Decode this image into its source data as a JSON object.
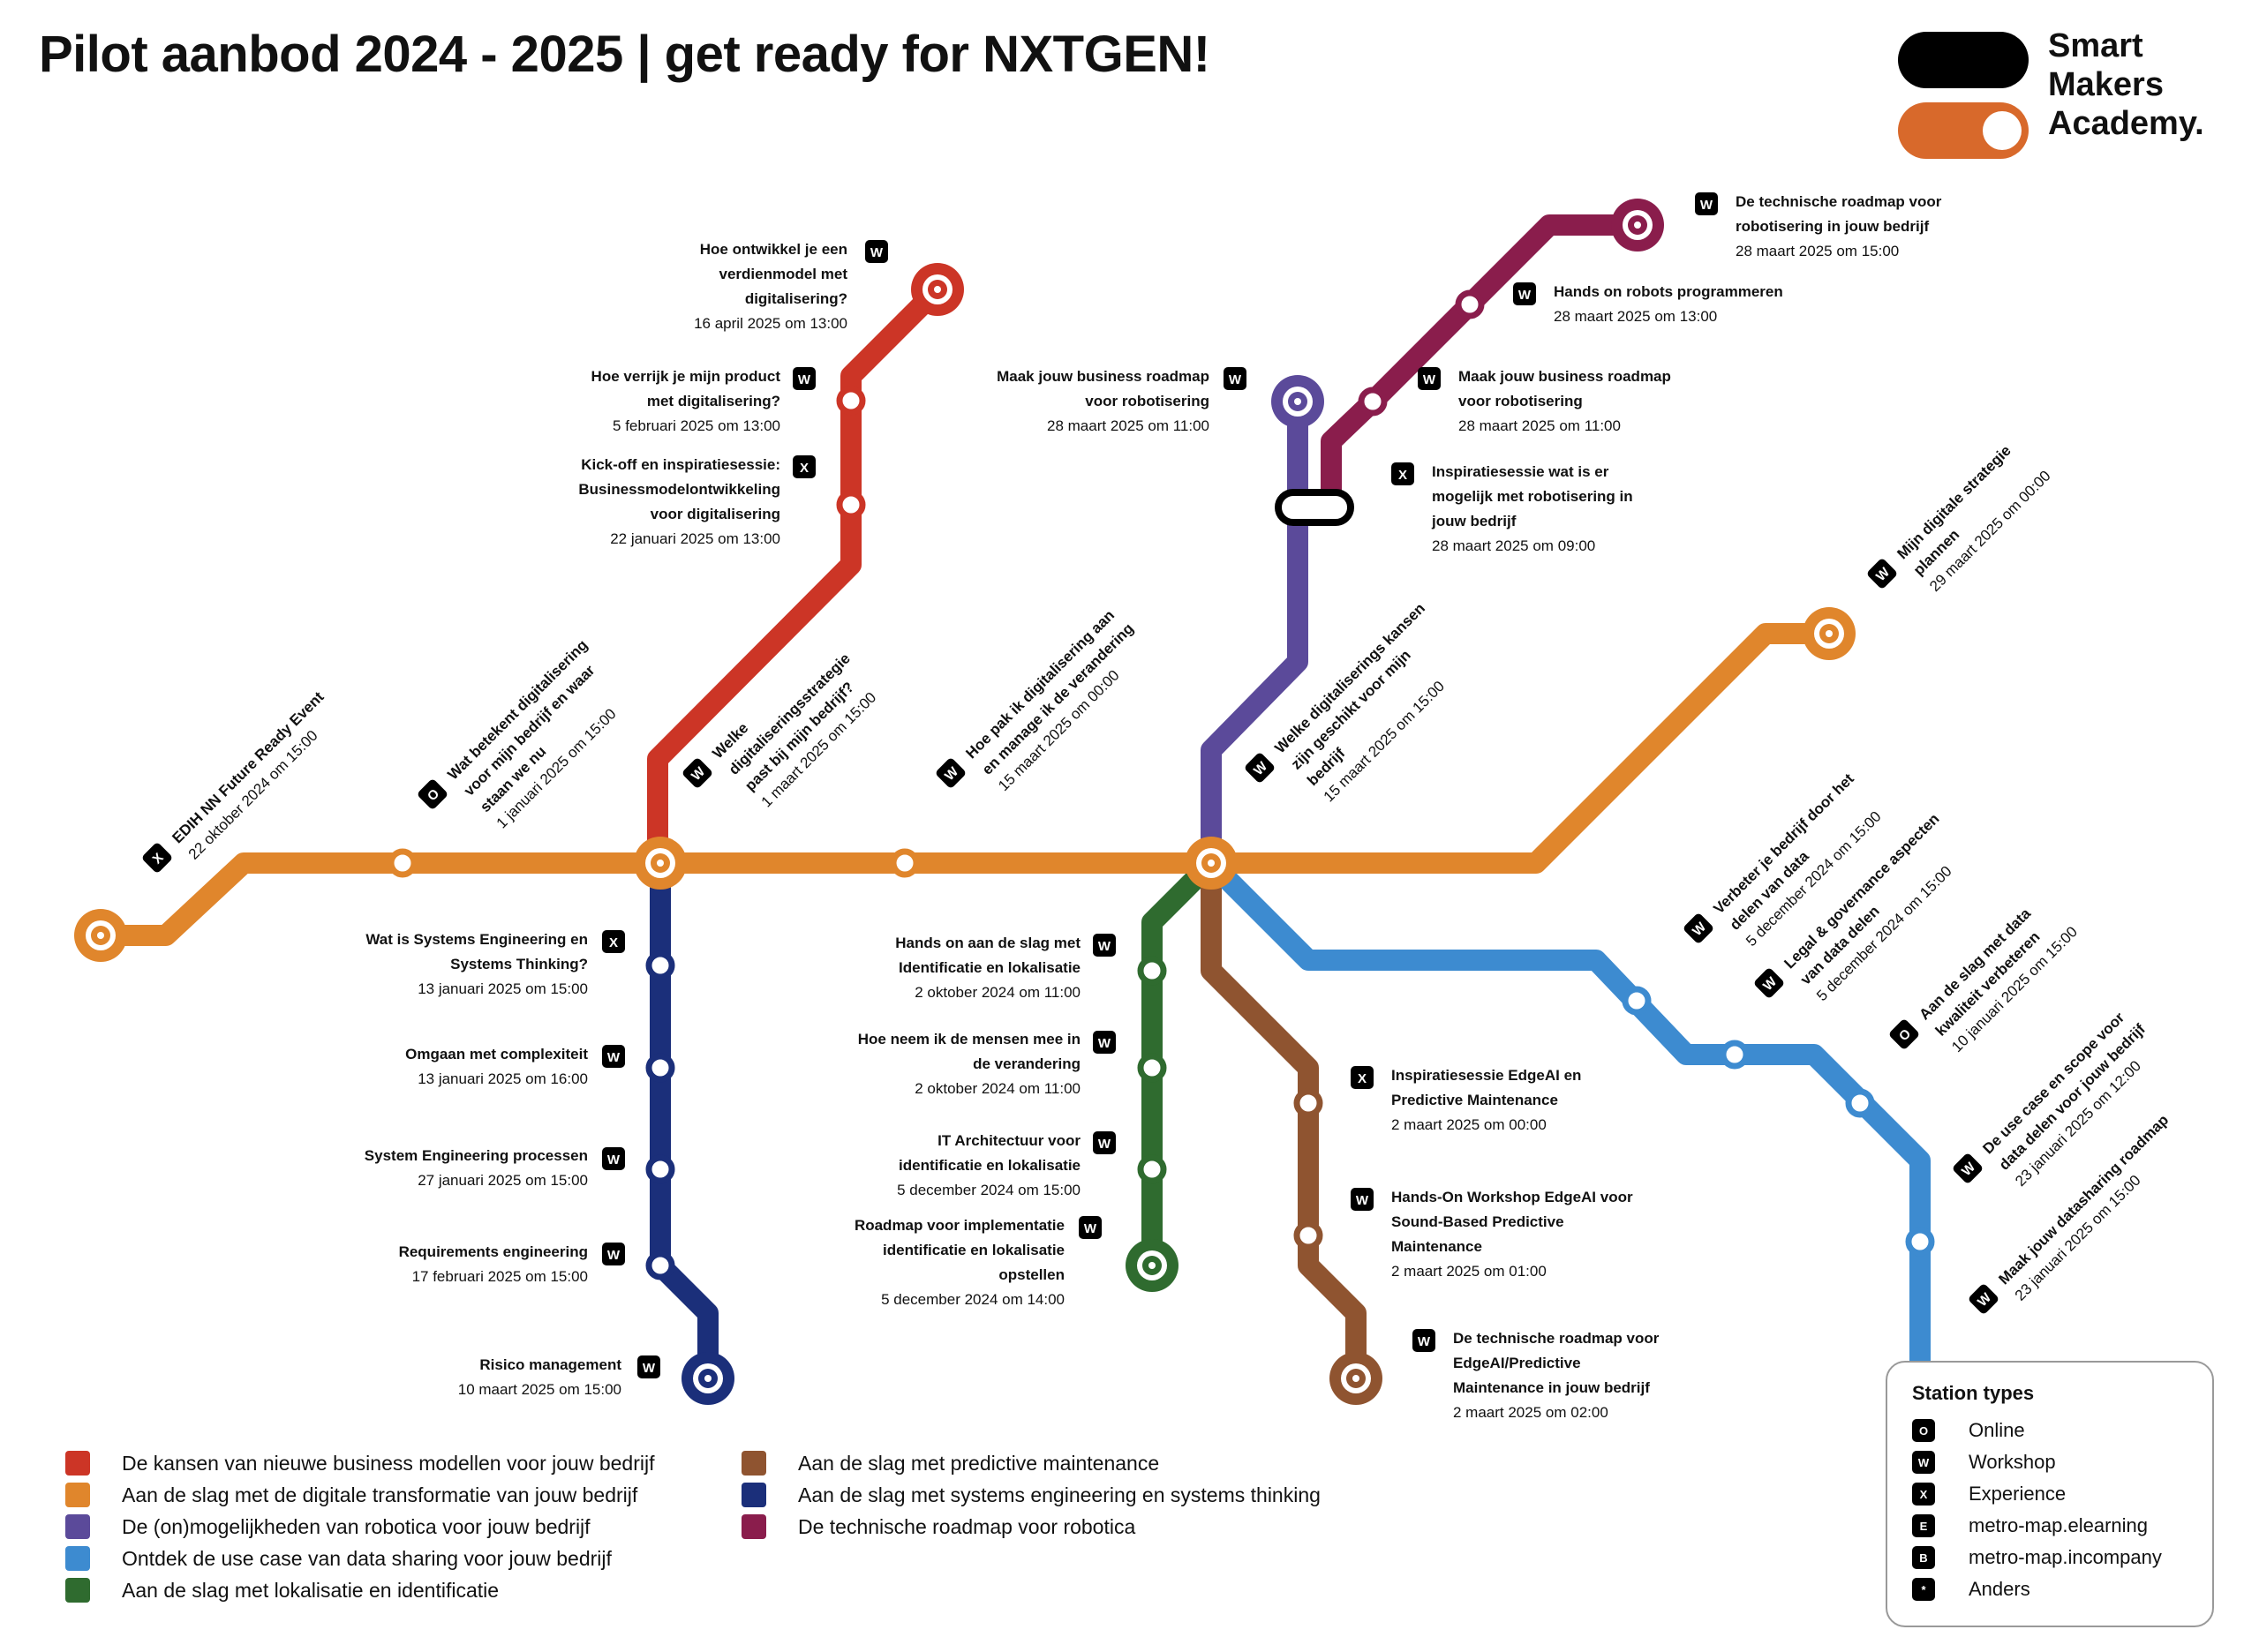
{
  "header": {
    "title": "Pilot aanbod 2024 - 2025 | get ready for NXTGEN!"
  },
  "logo": {
    "line1": "Smart",
    "line2": "Makers",
    "line3": "Academy."
  },
  "colors": {
    "red": "#cc3526",
    "orange": "#e0862c",
    "purple": "#5b4a9a",
    "lightblue": "#3d8bd0",
    "green": "#2f6b2f",
    "brown": "#8f5430",
    "navy": "#1b2f7a",
    "plum": "#8a1d4c"
  },
  "stations": [
    {
      "title": [
        "EDIH NN Future Ready Event"
      ],
      "date": "22 oktober 2024 om 15:00",
      "type": "X"
    },
    {
      "title": [
        "Wat betekent digitalisering",
        "voor mijn bedrijf en waar",
        "staan we nu"
      ],
      "date": "1 januari 2025 om 15:00",
      "type": "O"
    },
    {
      "title": [
        "Welke",
        "digitaliseringsstrategie",
        "past bij mijn bedrijf?"
      ],
      "date": "1 maart 2025 om 15:00",
      "type": "W"
    },
    {
      "title": [
        "Hoe pak ik digitalisering aan",
        "en manage ik de verandering"
      ],
      "date": "15 maart 2025 om 00:00",
      "type": "W"
    },
    {
      "title": [
        "Welke digitaliserings kansen",
        "zijn geschikt voor mijn",
        "bedrijf"
      ],
      "date": "15 maart 2025 om 15:00",
      "type": "W"
    },
    {
      "title": [
        "Mijn digitale strategie",
        "plannen"
      ],
      "date": "29 maart 2025 om 00:00",
      "type": "W"
    },
    {
      "title": [
        "Kick-off en inspiratiesessie:",
        "Businessmodelontwikkeling",
        "voor digitalisering"
      ],
      "date": "22 januari 2025 om 13:00",
      "type": "X"
    },
    {
      "title": [
        "Hoe verrijk je mijn product",
        "met digitalisering?"
      ],
      "date": "5 februari 2025 om 13:00",
      "type": "W"
    },
    {
      "title": [
        "Hoe ontwikkel je een",
        "verdienmodel met",
        "digitalisering?"
      ],
      "date": "16 april 2025 om 13:00",
      "type": "W"
    },
    {
      "title": [
        "Maak jouw business roadmap",
        "voor robotisering"
      ],
      "date": "28 maart 2025 om 11:00",
      "type": "W"
    },
    {
      "title": [
        "Inspiratiesessie wat is er",
        "mogelijk met robotisering in",
        "jouw bedrijf"
      ],
      "date": "28 maart 2025 om 09:00",
      "type": "X"
    },
    {
      "title": [
        "Maak jouw business roadmap",
        "voor robotisering"
      ],
      "date": "28 maart 2025 om 11:00",
      "type": "W"
    },
    {
      "title": [
        "Hands on robots programmeren"
      ],
      "date": "28 maart 2025 om 13:00",
      "type": "W"
    },
    {
      "title": [
        "De technische roadmap voor",
        "robotisering in jouw bedrijf"
      ],
      "date": "28 maart 2025 om 15:00",
      "type": "W"
    },
    {
      "title": [
        "Wat is Systems Engineering en",
        "Systems Thinking?"
      ],
      "date": "13 januari 2025 om 15:00",
      "type": "X"
    },
    {
      "title": [
        "Omgaan met complexiteit"
      ],
      "date": "13 januari 2025 om 16:00",
      "type": "W"
    },
    {
      "title": [
        "System Engineering processen"
      ],
      "date": "27 januari 2025 om 15:00",
      "type": "W"
    },
    {
      "title": [
        "Requirements engineering"
      ],
      "date": "17 februari 2025 om 15:00",
      "type": "W"
    },
    {
      "title": [
        "Risico management"
      ],
      "date": "10 maart 2025 om 15:00",
      "type": "W"
    },
    {
      "title": [
        "Hands on aan de slag met",
        "Identificatie en lokalisatie"
      ],
      "date": "2 oktober 2024 om 11:00",
      "type": "W"
    },
    {
      "title": [
        "Hoe neem ik de mensen mee in",
        "de verandering"
      ],
      "date": "2 oktober 2024 om 11:00",
      "type": "W"
    },
    {
      "title": [
        "IT Architectuur voor",
        "identificatie en lokalisatie"
      ],
      "date": "5 december 2024 om 15:00",
      "type": "W"
    },
    {
      "title": [
        "Roadmap voor implementatie",
        "identificatie en lokalisatie",
        "opstellen"
      ],
      "date": "5 december 2024 om 14:00",
      "type": "W"
    },
    {
      "title": [
        "Inspiratiesessie EdgeAI en",
        "Predictive Maintenance"
      ],
      "date": "2 maart 2025 om 00:00",
      "type": "X"
    },
    {
      "title": [
        "Hands-On Workshop EdgeAI voor",
        "Sound-Based Predictive",
        "Maintenance"
      ],
      "date": "2 maart 2025 om 01:00",
      "type": "W"
    },
    {
      "title": [
        "De technische roadmap voor",
        "EdgeAI/Predictive",
        "Maintenance in jouw bedrijf"
      ],
      "date": "2 maart 2025 om 02:00",
      "type": "W"
    },
    {
      "title": [
        "Verbeter je bedrijf door het",
        "delen van data"
      ],
      "date": "5 december 2024 om 15:00",
      "type": "W"
    },
    {
      "title": [
        "Legal & governance aspecten",
        "van data delen"
      ],
      "date": "5 december 2024 om 15:00",
      "type": "W"
    },
    {
      "title": [
        "Aan de slag met data",
        "kwaliteit verbeteren"
      ],
      "date": "10 januari 2025 om 15:00",
      "type": "O"
    },
    {
      "title": [
        "De use case en scope voor",
        "data delen voor jouw bedrijf"
      ],
      "date": "23 januari 2025 om 12:00",
      "type": "W"
    },
    {
      "title": [
        "Maak jouw datasharing roadmap"
      ],
      "date": "23 januari 2025 om 15:00",
      "type": "W"
    }
  ],
  "legend": [
    {
      "label": "De kansen van nieuwe business modellen voor jouw bedrijf",
      "color": "#cc3526"
    },
    {
      "label": "Aan de slag met de digitale transformatie van jouw bedrijf",
      "color": "#e0862c"
    },
    {
      "label": "De (on)mogelijkheden van robotica voor jouw bedrijf",
      "color": "#5b4a9a"
    },
    {
      "label": "Ontdek de use case van data sharing voor jouw bedrijf",
      "color": "#3d8bd0"
    },
    {
      "label": "Aan de slag met lokalisatie en identificatie",
      "color": "#2f6b2f"
    },
    {
      "label": "Aan de slag met predictive maintenance",
      "color": "#8f5430"
    },
    {
      "label": "Aan de slag met systems engineering en systems thinking",
      "color": "#1b2f7a"
    },
    {
      "label": "De technische roadmap voor robotica",
      "color": "#8a1d4c"
    }
  ],
  "station_types": {
    "title": "Station types",
    "items": [
      {
        "badge": "O",
        "label": "Online"
      },
      {
        "badge": "W",
        "label": "Workshop"
      },
      {
        "badge": "X",
        "label": "Experience"
      },
      {
        "badge": "E",
        "label": "metro-map.elearning"
      },
      {
        "badge": "B",
        "label": "metro-map.incompany"
      },
      {
        "badge": "*",
        "label": "Anders"
      }
    ]
  }
}
